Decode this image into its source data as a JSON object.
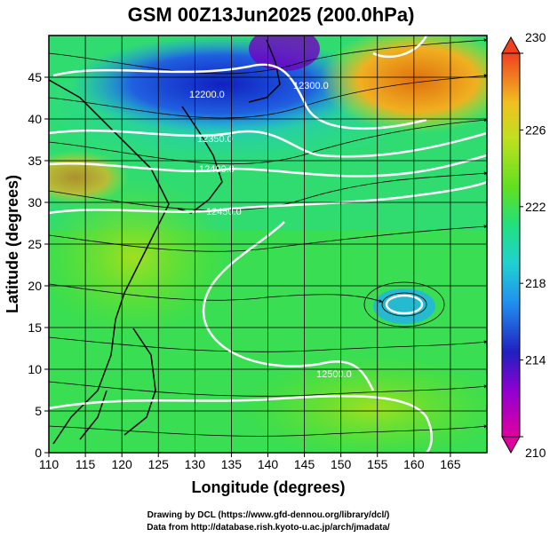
{
  "chart_data": {
    "type": "heatmap",
    "title": "GSM 00Z13Jun2025 (200.0hPa)",
    "xlabel": "Longitude (degrees)",
    "ylabel": "Latitude  (degrees)",
    "xlim": [
      110,
      170
    ],
    "ylim": [
      0,
      50
    ],
    "xticks": [
      110,
      115,
      120,
      125,
      130,
      135,
      140,
      145,
      150,
      155,
      160,
      165
    ],
    "yticks": [
      0,
      5,
      10,
      15,
      20,
      25,
      30,
      35,
      40,
      45
    ],
    "grid": true,
    "colorbar": {
      "min": 210,
      "max": 230,
      "ticks": [
        210,
        214,
        218,
        222,
        226,
        230
      ],
      "colors": [
        "#e000a0",
        "#2020c0",
        "#20a0f0",
        "#20e080",
        "#40e020",
        "#f0c020",
        "#f04020"
      ]
    },
    "contour_labels": [
      "12200.0",
      "12300.0",
      "12350.0",
      "12400.0",
      "12450.0",
      "12500.0"
    ],
    "vector_field": "streamlines"
  },
  "credits": {
    "line1": "Drawing by DCL (https://www.gfd-dennou.org/library/dcl/)",
    "line2": "Data from http://database.rish.kyoto-u.ac.jp/arch/jmadata/"
  }
}
